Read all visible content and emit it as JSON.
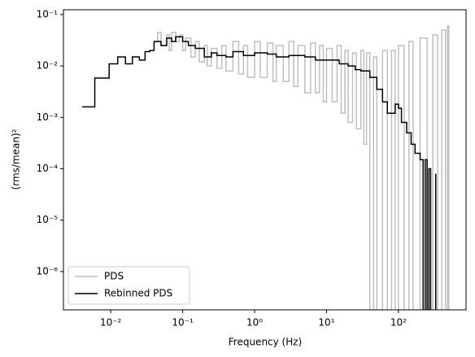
{
  "chart_data": {
    "type": "step",
    "xlabel": "Frequency (Hz)",
    "ylabel": "(rms/mean)²",
    "xscale": "log",
    "yscale": "log",
    "legend": "lower left",
    "xlim": [
      0.0022,
      870
    ],
    "ylim": [
      1.8e-07,
      0.124
    ],
    "xticks": [
      {
        "value": 0.01,
        "label": "10⁻²"
      },
      {
        "value": 0.1,
        "label": "10⁻¹"
      },
      {
        "value": 1,
        "label": "10⁰"
      },
      {
        "value": 10,
        "label": "10¹"
      },
      {
        "value": 100,
        "label": "10²"
      }
    ],
    "yticks": [
      {
        "value": 1e-06,
        "label": "10⁻⁶"
      },
      {
        "value": 1e-05,
        "label": "10⁻⁵"
      },
      {
        "value": 0.0001,
        "label": "10⁻⁴"
      },
      {
        "value": 0.001,
        "label": "10⁻³"
      },
      {
        "value": 0.01,
        "label": "10⁻²"
      },
      {
        "value": 0.1,
        "label": "10⁻¹"
      }
    ],
    "series": [
      {
        "name": "PDS",
        "color": "#bfbfbf",
        "x": [
          0.04,
          0.045,
          0.05,
          0.06,
          0.065,
          0.07,
          0.08,
          0.09,
          0.1,
          0.11,
          0.13,
          0.15,
          0.17,
          0.2,
          0.22,
          0.25,
          0.3,
          0.35,
          0.4,
          0.5,
          0.6,
          0.7,
          0.8,
          1,
          1.2,
          1.5,
          1.8,
          2,
          2.5,
          3,
          3.5,
          4,
          5,
          6,
          7,
          8,
          9,
          10,
          12,
          14,
          16,
          18,
          20,
          23,
          26,
          30,
          33,
          36,
          40,
          45,
          50,
          60,
          70,
          80,
          90,
          100,
          120,
          140,
          160,
          200,
          250,
          300,
          350,
          400,
          450,
          480,
          500
        ],
        "values": [
          0.03,
          0.045,
          0.025,
          0.04,
          0.02,
          0.045,
          0.03,
          0.04,
          0.02,
          0.035,
          0.015,
          0.03,
          0.012,
          0.025,
          0.01,
          0.022,
          0.009,
          0.025,
          0.008,
          0.03,
          0.007,
          0.025,
          0.006,
          0.03,
          0.006,
          0.028,
          0.005,
          0.025,
          0.005,
          0.03,
          0.004,
          0.025,
          0.003,
          0.028,
          0.003,
          0.025,
          0.002,
          0.022,
          0.002,
          0.025,
          0.0012,
          0.02,
          0.0008,
          0.018,
          0.0006,
          0.02,
          0.0003,
          0.018,
          0,
          0.015,
          0,
          0.02,
          0,
          0.02,
          0,
          0.025,
          0,
          0.03,
          0,
          0.035,
          0,
          0.04,
          0,
          0.05,
          0,
          0.06,
          0
        ]
      },
      {
        "name": "Rebinned PDS",
        "color": "#000000",
        "x": [
          0.004,
          0.006,
          0.0095,
          0.0125,
          0.016,
          0.02,
          0.025,
          0.03,
          0.035,
          0.04,
          0.05,
          0.06,
          0.07,
          0.08,
          0.1,
          0.12,
          0.15,
          0.2,
          0.25,
          0.3,
          0.4,
          0.5,
          0.7,
          1,
          1.5,
          2,
          3,
          5,
          7,
          10,
          15,
          20,
          25,
          30,
          40,
          50,
          60,
          70,
          80,
          90,
          100,
          110,
          130,
          150,
          170,
          200,
          220,
          235,
          250,
          265,
          280,
          330
        ],
        "values": [
          0.0016,
          0.0058,
          0.011,
          0.015,
          0.011,
          0.015,
          0.013,
          0.019,
          0.02,
          0.03,
          0.025,
          0.035,
          0.03,
          0.037,
          0.03,
          0.025,
          0.022,
          0.015,
          0.018,
          0.016,
          0.015,
          0.019,
          0.016,
          0.018,
          0.017,
          0.015,
          0.016,
          0.015,
          0.013,
          0.013,
          0.011,
          0.01,
          0.0085,
          0.008,
          0.006,
          0.0035,
          0.002,
          0.0012,
          0.0012,
          0.0018,
          0.0015,
          0.0008,
          0.0005,
          0.0003,
          0.0002,
          0.00015,
          0,
          0.00015,
          0,
          0.0001,
          0,
          8e-05
        ]
      }
    ]
  }
}
